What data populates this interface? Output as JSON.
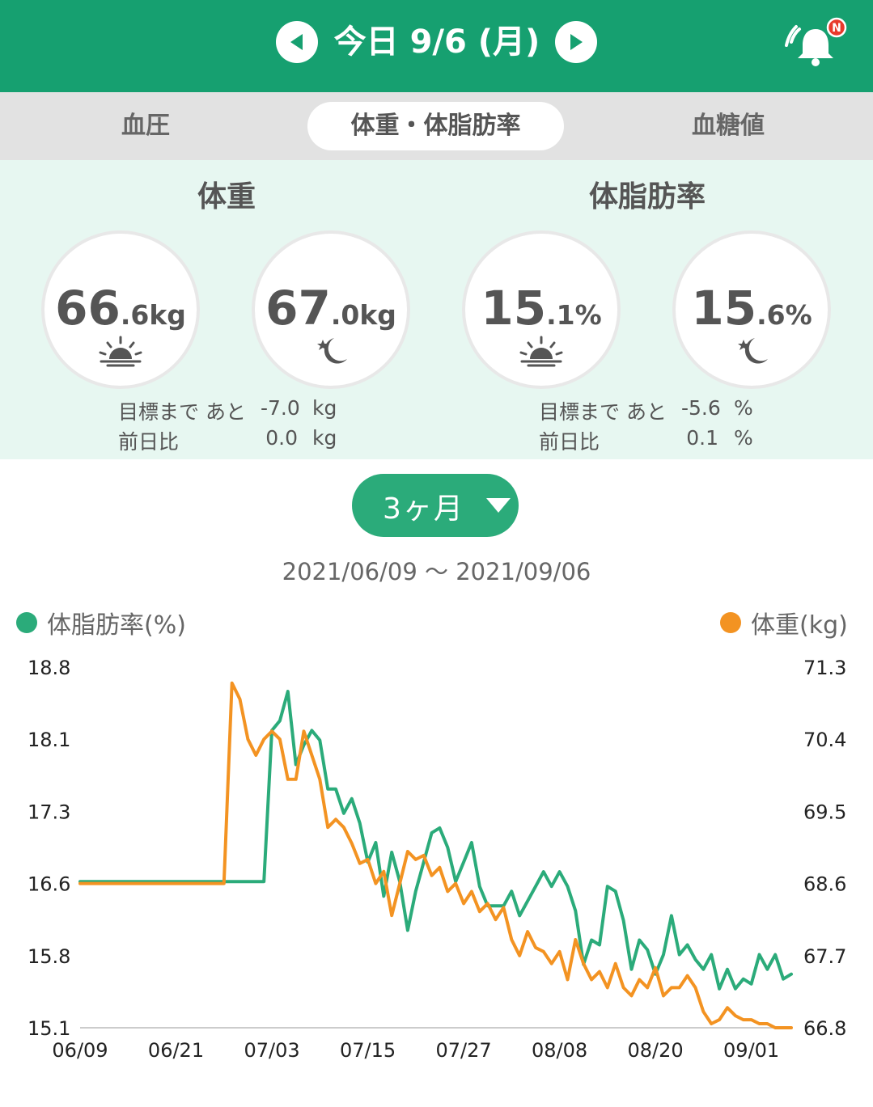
{
  "header": {
    "title": "今日 9/6 (月)",
    "notification_badge": "N",
    "background_color": "#16a070"
  },
  "tabs": [
    {
      "label": "血圧",
      "active": false
    },
    {
      "label": "体重・体脂肪率",
      "active": true
    },
    {
      "label": "血糖値",
      "active": false
    }
  ],
  "summary": {
    "weight": {
      "title": "体重",
      "morning": {
        "int": "66",
        "dec": ".6",
        "unit": "kg",
        "icon": "sunrise-icon"
      },
      "evening": {
        "int": "67",
        "dec": ".0",
        "unit": "kg",
        "icon": "moon-star-icon"
      },
      "goal_label": "目標まで あと",
      "goal_value": "-7.0",
      "goal_unit": "kg",
      "prev_label": "前日比",
      "prev_value": "0.0",
      "prev_unit": "kg"
    },
    "bodyfat": {
      "title": "体脂肪率",
      "morning": {
        "int": "15",
        "dec": ".1",
        "unit": "%",
        "icon": "sunrise-icon"
      },
      "evening": {
        "int": "15",
        "dec": ".6",
        "unit": "%",
        "icon": "moon-star-icon"
      },
      "goal_label": "目標まで あと",
      "goal_value": "-5.6",
      "goal_unit": "%",
      "prev_label": "前日比",
      "prev_value": "0.1",
      "prev_unit": "%"
    }
  },
  "range_selector": {
    "label": "3ヶ月",
    "icon": "caret-down-icon"
  },
  "date_range": "2021/06/09 〜 2021/09/06",
  "chart_data": {
    "type": "line",
    "x_tick_labels": [
      "06/09",
      "06/21",
      "07/03",
      "07/15",
      "07/27",
      "08/08",
      "08/20",
      "09/01"
    ],
    "x_start": "2021-06-09",
    "x_end": "2021-09-06",
    "grid": false,
    "y_left": {
      "label": "体脂肪率(%)",
      "ticks": [
        "18.8",
        "18.1",
        "17.3",
        "16.6",
        "15.8",
        "15.1"
      ],
      "range": [
        15.1,
        18.8
      ]
    },
    "y_right": {
      "label": "体重(kg)",
      "ticks": [
        "71.3",
        "70.4",
        "69.5",
        "68.6",
        "67.7",
        "66.8"
      ],
      "range": [
        66.8,
        71.3
      ]
    },
    "series": [
      {
        "name": "体脂肪率(%)",
        "axis": "left",
        "color": "#2bab7a",
        "points": [
          [
            "2021-06-09",
            16.6
          ],
          [
            "2021-06-30",
            16.6
          ],
          [
            "2021-07-01",
            16.6
          ],
          [
            "2021-07-02",
            16.6
          ],
          [
            "2021-07-03",
            18.15
          ],
          [
            "2021-07-04",
            18.25
          ],
          [
            "2021-07-05",
            18.55
          ],
          [
            "2021-07-06",
            17.8
          ],
          [
            "2021-07-07",
            18.0
          ],
          [
            "2021-07-08",
            18.15
          ],
          [
            "2021-07-09",
            18.05
          ],
          [
            "2021-07-10",
            17.55
          ],
          [
            "2021-07-11",
            17.55
          ],
          [
            "2021-07-12",
            17.3
          ],
          [
            "2021-07-13",
            17.45
          ],
          [
            "2021-07-14",
            17.2
          ],
          [
            "2021-07-15",
            16.8
          ],
          [
            "2021-07-16",
            17.0
          ],
          [
            "2021-07-17",
            16.45
          ],
          [
            "2021-07-18",
            16.9
          ],
          [
            "2021-07-19",
            16.6
          ],
          [
            "2021-07-20",
            16.1
          ],
          [
            "2021-07-21",
            16.5
          ],
          [
            "2021-07-22",
            16.8
          ],
          [
            "2021-07-23",
            17.1
          ],
          [
            "2021-07-24",
            17.15
          ],
          [
            "2021-07-25",
            16.95
          ],
          [
            "2021-07-26",
            16.6
          ],
          [
            "2021-07-27",
            16.8
          ],
          [
            "2021-07-28",
            17.0
          ],
          [
            "2021-07-29",
            16.55
          ],
          [
            "2021-07-30",
            16.35
          ],
          [
            "2021-07-31",
            16.35
          ],
          [
            "2021-08-01",
            16.35
          ],
          [
            "2021-08-02",
            16.5
          ],
          [
            "2021-08-03",
            16.25
          ],
          [
            "2021-08-04",
            16.4
          ],
          [
            "2021-08-05",
            16.55
          ],
          [
            "2021-08-06",
            16.7
          ],
          [
            "2021-08-07",
            16.55
          ],
          [
            "2021-08-08",
            16.7
          ],
          [
            "2021-08-09",
            16.55
          ],
          [
            "2021-08-10",
            16.3
          ],
          [
            "2021-08-11",
            15.75
          ],
          [
            "2021-08-12",
            16.0
          ],
          [
            "2021-08-13",
            15.95
          ],
          [
            "2021-08-14",
            16.55
          ],
          [
            "2021-08-15",
            16.5
          ],
          [
            "2021-08-16",
            16.2
          ],
          [
            "2021-08-17",
            15.7
          ],
          [
            "2021-08-18",
            16.0
          ],
          [
            "2021-08-19",
            15.9
          ],
          [
            "2021-08-20",
            15.65
          ],
          [
            "2021-08-21",
            15.85
          ],
          [
            "2021-08-22",
            16.25
          ],
          [
            "2021-08-23",
            15.85
          ],
          [
            "2021-08-24",
            15.95
          ],
          [
            "2021-08-25",
            15.8
          ],
          [
            "2021-08-26",
            15.7
          ],
          [
            "2021-08-27",
            15.85
          ],
          [
            "2021-08-28",
            15.5
          ],
          [
            "2021-08-29",
            15.7
          ],
          [
            "2021-08-30",
            15.5
          ],
          [
            "2021-08-31",
            15.6
          ],
          [
            "2021-09-01",
            15.55
          ],
          [
            "2021-09-02",
            15.85
          ],
          [
            "2021-09-03",
            15.7
          ],
          [
            "2021-09-04",
            15.85
          ],
          [
            "2021-09-05",
            15.6
          ],
          [
            "2021-09-06",
            15.65
          ]
        ]
      },
      {
        "name": "体重(kg)",
        "axis": "right",
        "color": "#f39322",
        "points": [
          [
            "2021-06-09",
            68.6
          ],
          [
            "2021-06-27",
            68.6
          ],
          [
            "2021-06-28",
            71.1
          ],
          [
            "2021-06-29",
            70.9
          ],
          [
            "2021-06-30",
            70.4
          ],
          [
            "2021-07-01",
            70.2
          ],
          [
            "2021-07-02",
            70.4
          ],
          [
            "2021-07-03",
            70.5
          ],
          [
            "2021-07-04",
            70.4
          ],
          [
            "2021-07-05",
            69.9
          ],
          [
            "2021-07-06",
            69.9
          ],
          [
            "2021-07-07",
            70.5
          ],
          [
            "2021-07-08",
            70.2
          ],
          [
            "2021-07-09",
            69.9
          ],
          [
            "2021-07-10",
            69.3
          ],
          [
            "2021-07-11",
            69.4
          ],
          [
            "2021-07-12",
            69.3
          ],
          [
            "2021-07-13",
            69.1
          ],
          [
            "2021-07-14",
            68.85
          ],
          [
            "2021-07-15",
            68.9
          ],
          [
            "2021-07-16",
            68.6
          ],
          [
            "2021-07-17",
            68.75
          ],
          [
            "2021-07-18",
            68.2
          ],
          [
            "2021-07-19",
            68.6
          ],
          [
            "2021-07-20",
            69.0
          ],
          [
            "2021-07-21",
            68.9
          ],
          [
            "2021-07-22",
            68.95
          ],
          [
            "2021-07-23",
            68.7
          ],
          [
            "2021-07-24",
            68.8
          ],
          [
            "2021-07-25",
            68.5
          ],
          [
            "2021-07-26",
            68.6
          ],
          [
            "2021-07-27",
            68.35
          ],
          [
            "2021-07-28",
            68.5
          ],
          [
            "2021-07-29",
            68.25
          ],
          [
            "2021-07-30",
            68.35
          ],
          [
            "2021-07-31",
            68.15
          ],
          [
            "2021-08-01",
            68.3
          ],
          [
            "2021-08-02",
            67.9
          ],
          [
            "2021-08-03",
            67.7
          ],
          [
            "2021-08-04",
            68.0
          ],
          [
            "2021-08-05",
            67.8
          ],
          [
            "2021-08-06",
            67.75
          ],
          [
            "2021-08-07",
            67.6
          ],
          [
            "2021-08-08",
            67.75
          ],
          [
            "2021-08-09",
            67.4
          ],
          [
            "2021-08-10",
            67.9
          ],
          [
            "2021-08-11",
            67.6
          ],
          [
            "2021-08-12",
            67.4
          ],
          [
            "2021-08-13",
            67.5
          ],
          [
            "2021-08-14",
            67.3
          ],
          [
            "2021-08-15",
            67.6
          ],
          [
            "2021-08-16",
            67.3
          ],
          [
            "2021-08-17",
            67.2
          ],
          [
            "2021-08-18",
            67.4
          ],
          [
            "2021-08-19",
            67.3
          ],
          [
            "2021-08-20",
            67.55
          ],
          [
            "2021-08-21",
            67.2
          ],
          [
            "2021-08-22",
            67.3
          ],
          [
            "2021-08-23",
            67.3
          ],
          [
            "2021-08-24",
            67.45
          ],
          [
            "2021-08-25",
            67.3
          ],
          [
            "2021-08-26",
            67.0
          ],
          [
            "2021-08-27",
            66.85
          ],
          [
            "2021-08-28",
            66.9
          ],
          [
            "2021-08-29",
            67.05
          ],
          [
            "2021-08-30",
            66.95
          ],
          [
            "2021-08-31",
            66.9
          ],
          [
            "2021-09-01",
            66.9
          ],
          [
            "2021-09-02",
            66.85
          ],
          [
            "2021-09-03",
            66.85
          ],
          [
            "2021-09-04",
            66.8
          ],
          [
            "2021-09-05",
            66.8
          ],
          [
            "2021-09-06",
            66.8
          ]
        ]
      }
    ]
  }
}
